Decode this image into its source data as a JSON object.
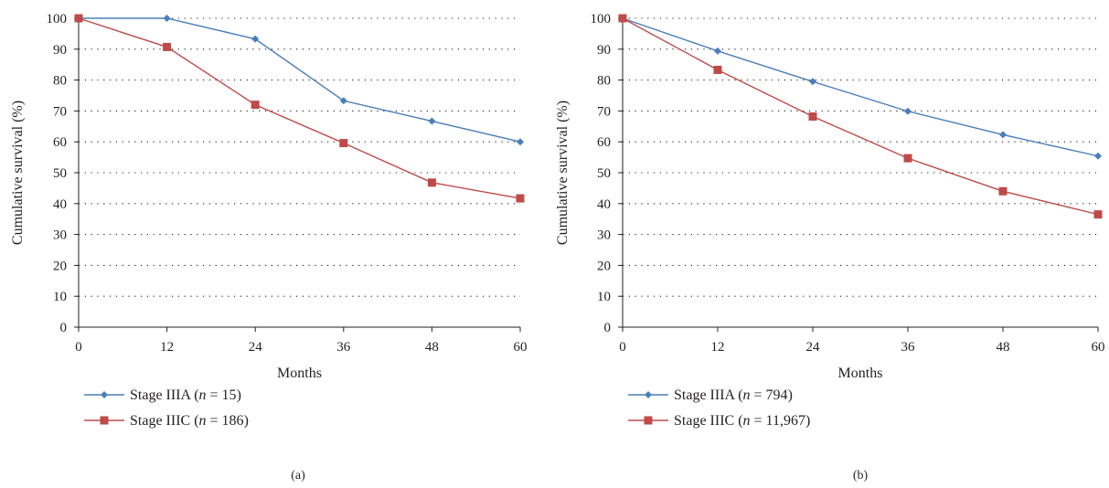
{
  "chart_data": [
    {
      "type": "line",
      "panel_label": "(a)",
      "xlabel": "Months",
      "ylabel": "Cumulative survival (%)",
      "x": [
        0,
        12,
        24,
        36,
        48,
        60
      ],
      "x_ticks": [
        "0",
        "12",
        "24",
        "36",
        "48",
        "60"
      ],
      "y_ticks": [
        "0",
        "10",
        "20",
        "30",
        "40",
        "50",
        "60",
        "70",
        "80",
        "90",
        "100"
      ],
      "xlim": [
        0,
        60
      ],
      "ylim": [
        0,
        100
      ],
      "grid": "horizontal dotted",
      "legend_position": "bottom-left",
      "series": [
        {
          "name": "Stage IIIA",
          "n_label": "n",
          "n_value": "= 15",
          "marker": "diamond",
          "color": "#4a7ebb",
          "values": [
            100,
            100,
            93.3,
            73.3,
            66.7,
            60
          ]
        },
        {
          "name": "Stage IIIC",
          "n_label": "n",
          "n_value": "= 186",
          "marker": "square",
          "color": "#be4b48",
          "values": [
            100,
            90.7,
            72,
            59.6,
            46.8,
            41.7
          ]
        }
      ]
    },
    {
      "type": "line",
      "panel_label": "(b)",
      "xlabel": "Months",
      "ylabel": "Cumulative survival (%)",
      "x": [
        0,
        12,
        24,
        36,
        48,
        60
      ],
      "x_ticks": [
        "0",
        "12",
        "24",
        "36",
        "48",
        "60"
      ],
      "y_ticks": [
        "0",
        "10",
        "20",
        "30",
        "40",
        "50",
        "60",
        "70",
        "80",
        "90",
        "100"
      ],
      "xlim": [
        0,
        60
      ],
      "ylim": [
        0,
        100
      ],
      "grid": "horizontal dotted",
      "legend_position": "bottom-left",
      "series": [
        {
          "name": "Stage IIIA",
          "n_label": "n",
          "n_value": "= 794",
          "marker": "diamond",
          "color": "#4a7ebb",
          "values": [
            100,
            89.4,
            79.5,
            69.9,
            62.3,
            55.4
          ]
        },
        {
          "name": "Stage IIIC",
          "n_label": "n",
          "n_value": "= 11,967",
          "marker": "square",
          "color": "#be4b48",
          "values": [
            100,
            83.3,
            68.2,
            54.7,
            44,
            36.5
          ]
        }
      ]
    }
  ]
}
